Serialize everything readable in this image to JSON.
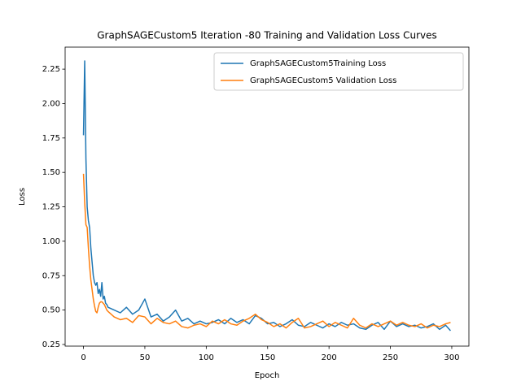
{
  "chart_data": {
    "type": "line",
    "title": "GraphSAGECustom5 Iteration -80 Training and Validation Loss Curves",
    "x_label": "Epoch",
    "y_label": "Loss",
    "x": [
      0,
      1,
      2,
      3,
      4,
      5,
      6,
      7,
      8,
      9,
      10,
      11,
      12,
      13,
      14,
      15,
      16,
      17,
      18,
      19,
      20,
      25,
      30,
      35,
      40,
      45,
      50,
      55,
      60,
      65,
      70,
      75,
      80,
      85,
      90,
      95,
      100,
      105,
      110,
      115,
      120,
      125,
      130,
      135,
      140,
      145,
      150,
      155,
      160,
      165,
      170,
      175,
      180,
      185,
      190,
      195,
      200,
      205,
      210,
      215,
      220,
      225,
      230,
      235,
      240,
      245,
      250,
      255,
      260,
      265,
      270,
      275,
      280,
      285,
      290,
      295,
      299
    ],
    "series": [
      {
        "name": "GraphSAGECustom5Training Loss",
        "color": "#1f77b4",
        "values": [
          1.77,
          2.31,
          1.6,
          1.25,
          1.15,
          1.1,
          0.95,
          0.85,
          0.75,
          0.7,
          0.68,
          0.7,
          0.62,
          0.65,
          0.6,
          0.7,
          0.58,
          0.6,
          0.55,
          0.54,
          0.52,
          0.5,
          0.48,
          0.52,
          0.47,
          0.5,
          0.58,
          0.45,
          0.47,
          0.42,
          0.45,
          0.5,
          0.42,
          0.44,
          0.4,
          0.42,
          0.4,
          0.41,
          0.43,
          0.4,
          0.44,
          0.41,
          0.43,
          0.4,
          0.46,
          0.44,
          0.4,
          0.41,
          0.38,
          0.4,
          0.43,
          0.39,
          0.38,
          0.41,
          0.39,
          0.37,
          0.4,
          0.38,
          0.41,
          0.39,
          0.4,
          0.37,
          0.36,
          0.39,
          0.41,
          0.36,
          0.42,
          0.38,
          0.4,
          0.38,
          0.39,
          0.37,
          0.38,
          0.4,
          0.36,
          0.39,
          0.35
        ]
      },
      {
        "name": "GraphSAGECustom5 Validation Loss",
        "color": "#ff7f0e",
        "values": [
          1.49,
          1.28,
          1.12,
          1.1,
          0.95,
          0.82,
          0.72,
          0.65,
          0.58,
          0.53,
          0.49,
          0.48,
          0.52,
          0.55,
          0.56,
          0.56,
          0.55,
          0.54,
          0.52,
          0.5,
          0.49,
          0.45,
          0.43,
          0.44,
          0.41,
          0.46,
          0.45,
          0.4,
          0.44,
          0.41,
          0.4,
          0.42,
          0.38,
          0.37,
          0.39,
          0.4,
          0.38,
          0.42,
          0.4,
          0.43,
          0.4,
          0.39,
          0.42,
          0.44,
          0.47,
          0.43,
          0.41,
          0.38,
          0.4,
          0.37,
          0.41,
          0.44,
          0.37,
          0.38,
          0.4,
          0.42,
          0.38,
          0.41,
          0.39,
          0.37,
          0.44,
          0.39,
          0.37,
          0.4,
          0.38,
          0.4,
          0.42,
          0.39,
          0.41,
          0.39,
          0.38,
          0.4,
          0.37,
          0.39,
          0.38,
          0.4,
          0.41
        ]
      }
    ],
    "xlim": [
      -14.95,
      313.95
    ],
    "ylim": [
      0.238,
      2.41
    ],
    "xticks": [
      0,
      50,
      100,
      150,
      200,
      250,
      300
    ],
    "yticks": [
      0.25,
      {
        "value": 0.5,
        "label": "0.50"
      },
      0.75,
      {
        "value": 1.0,
        "label": "1.00"
      },
      1.25,
      {
        "value": 1.5,
        "label": "1.50"
      },
      1.75,
      {
        "value": 2.0,
        "label": "2.00"
      },
      2.25
    ],
    "legend": "upper right",
    "grid": false
  }
}
